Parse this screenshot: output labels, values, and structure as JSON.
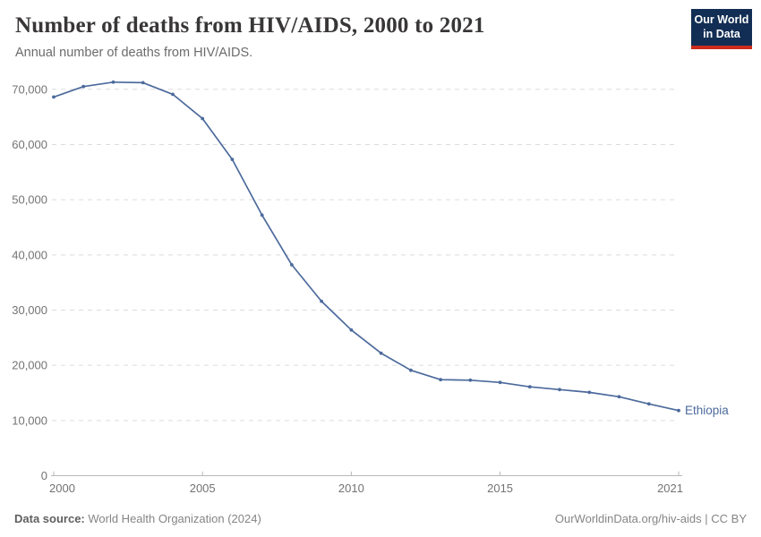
{
  "header": {
    "title": "Number of deaths from HIV/AIDS, 2000 to 2021",
    "subtitle": "Annual number of deaths from HIV/AIDS."
  },
  "logo": {
    "line1": "Our World",
    "line2": "in Data",
    "bg_color": "#132E54",
    "stripe_color": "#CE2A1D"
  },
  "chart_data": {
    "type": "line",
    "title": "Number of deaths from HIV/AIDS, 2000 to 2021",
    "x": [
      2000,
      2001,
      2002,
      2003,
      2004,
      2005,
      2006,
      2007,
      2008,
      2009,
      2010,
      2011,
      2012,
      2013,
      2014,
      2015,
      2016,
      2017,
      2018,
      2019,
      2020,
      2021
    ],
    "series": [
      {
        "name": "Ethiopia",
        "color": "#4C6A9C",
        "values": [
          68600,
          70500,
          71300,
          71200,
          69100,
          64700,
          57300,
          47200,
          38200,
          31600,
          26400,
          22200,
          19100,
          17400,
          17300,
          16900,
          16100,
          15600,
          15100,
          14300,
          13000,
          11800
        ]
      }
    ],
    "xlabel": "",
    "ylabel": "",
    "ylim": [
      0,
      70000
    ],
    "yticks": [
      0,
      10000,
      20000,
      30000,
      40000,
      50000,
      60000,
      70000
    ],
    "xticks": [
      2000,
      2005,
      2010,
      2015,
      2021
    ],
    "grid": "horizontal-dashed",
    "legend_position": "end-of-line-label",
    "axis_color": "#b8b8b8",
    "grid_color": "#dcdcdc",
    "tick_label_color": "#737373"
  },
  "footer": {
    "datasource_label": "Data source:",
    "datasource_value": " World Health Organization (2024)",
    "right_text": "OurWorldinData.org/hiv-aids | CC BY"
  }
}
